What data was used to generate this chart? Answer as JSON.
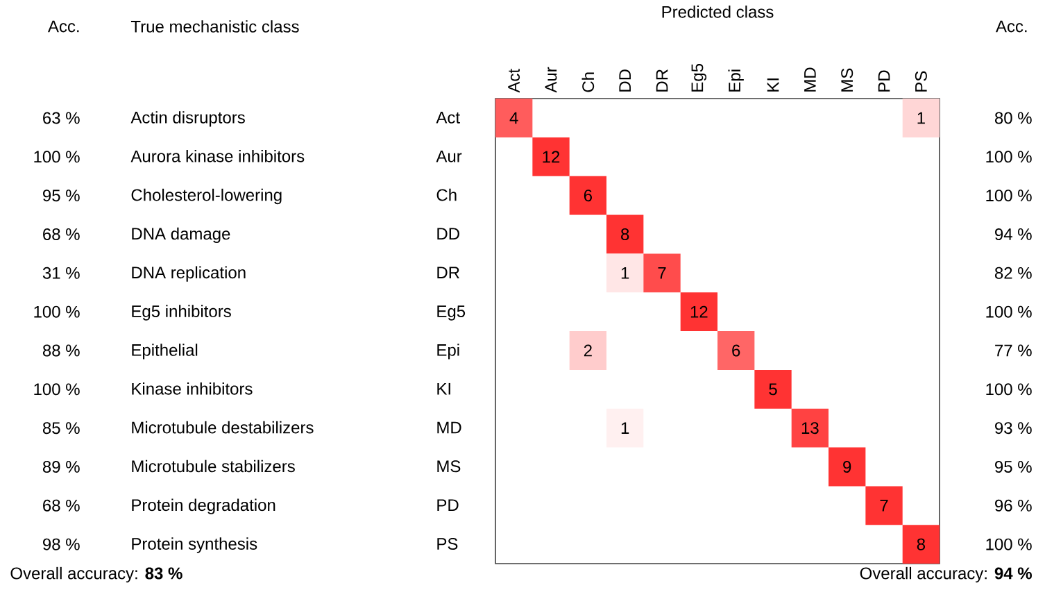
{
  "chart_data": {
    "type": "heatmap",
    "xlabel": "Predicted class",
    "y2label": "Acc.",
    "categories": [
      "Act",
      "Aur",
      "Ch",
      "DD",
      "DR",
      "Eg5",
      "Epi",
      "KI",
      "MD",
      "MS",
      "PD",
      "PS"
    ],
    "y_categories": [
      "Act",
      "Aur",
      "Ch",
      "DD",
      "DR",
      "Eg5",
      "Epi",
      "KI",
      "MD",
      "MS",
      "PD",
      "PS"
    ],
    "y2_categories": [
      "80 %",
      "100 %",
      "100 %",
      "94 %",
      "82 %",
      "100 %",
      "77 %",
      "100 %",
      "93 %",
      "95 %",
      "96 %",
      "100 %"
    ],
    "cells": [
      [
        4,
        null,
        null,
        null,
        null,
        null,
        null,
        null,
        null,
        null,
        null,
        1
      ],
      [
        null,
        12,
        null,
        null,
        null,
        null,
        null,
        null,
        null,
        null,
        null,
        null
      ],
      [
        null,
        null,
        6,
        null,
        null,
        null,
        null,
        null,
        null,
        null,
        null,
        null
      ],
      [
        null,
        null,
        null,
        8,
        null,
        null,
        null,
        null,
        null,
        null,
        null,
        null
      ],
      [
        null,
        null,
        null,
        1,
        7,
        null,
        null,
        null,
        null,
        null,
        null,
        null
      ],
      [
        null,
        null,
        null,
        null,
        null,
        12,
        null,
        null,
        null,
        null,
        null,
        null
      ],
      [
        null,
        null,
        2,
        null,
        null,
        null,
        6,
        null,
        null,
        null,
        null,
        null
      ],
      [
        null,
        null,
        null,
        null,
        null,
        null,
        null,
        5,
        null,
        null,
        null,
        null
      ],
      [
        null,
        null,
        null,
        1,
        null,
        null,
        null,
        null,
        13,
        null,
        null,
        null
      ],
      [
        null,
        null,
        null,
        null,
        null,
        null,
        null,
        null,
        null,
        9,
        null,
        null
      ],
      [
        null,
        null,
        null,
        null,
        null,
        null,
        null,
        null,
        null,
        null,
        7,
        null
      ],
      [
        null,
        null,
        null,
        null,
        null,
        null,
        null,
        null,
        null,
        null,
        null,
        8
      ]
    ],
    "data_labels": true,
    "cell_labels": [
      [
        "4",
        null,
        null,
        null,
        null,
        null,
        null,
        null,
        null,
        null,
        null,
        "1"
      ],
      [
        null,
        "12",
        null,
        null,
        null,
        null,
        null,
        null,
        null,
        null,
        null,
        null
      ],
      [
        null,
        null,
        "6",
        null,
        null,
        null,
        null,
        null,
        null,
        null,
        null,
        null
      ],
      [
        null,
        null,
        null,
        "8",
        null,
        null,
        null,
        null,
        null,
        null,
        null,
        null
      ],
      [
        null,
        null,
        null,
        "1",
        "7",
        null,
        null,
        null,
        null,
        null,
        null,
        null
      ],
      [
        null,
        null,
        null,
        null,
        null,
        "12",
        null,
        null,
        null,
        null,
        null,
        null
      ],
      [
        null,
        null,
        "2",
        null,
        null,
        null,
        "6",
        null,
        null,
        null,
        null,
        null
      ],
      [
        null,
        null,
        null,
        null,
        null,
        null,
        null,
        "5",
        null,
        null,
        null,
        null
      ],
      [
        null,
        null,
        null,
        "1",
        null,
        null,
        null,
        null,
        "13",
        null,
        null,
        null
      ],
      [
        null,
        null,
        null,
        null,
        null,
        null,
        null,
        null,
        null,
        "9",
        null,
        null
      ],
      [
        null,
        null,
        null,
        null,
        null,
        null,
        null,
        null,
        null,
        null,
        "7",
        null
      ],
      [
        null,
        null,
        null,
        null,
        null,
        null,
        null,
        null,
        null,
        null,
        null,
        "8"
      ]
    ],
    "annotations": [
      "Acc.",
      "True mechanistic class",
      "Overall accuracy: **83 %**",
      "Overall accuracy: **94 %**",
      "63 %",
      "100 %",
      "95 %",
      "68 %",
      "31 %",
      "100 %",
      "88 %",
      "100 %",
      "85 %",
      "89 %",
      "68 %",
      "98 %",
      "Actin disruptors",
      "Aurora kinase inhibitors",
      "Cholesterol-lowering",
      "DNA damage",
      "DNA replication",
      "Eg5 inhibitors",
      "Epithelial",
      "Kinase inhibitors",
      "Microtubule destabilizers",
      "Microtubule stabilizers",
      "Protein degradation",
      "Protein synthesis"
    ]
  }
}
